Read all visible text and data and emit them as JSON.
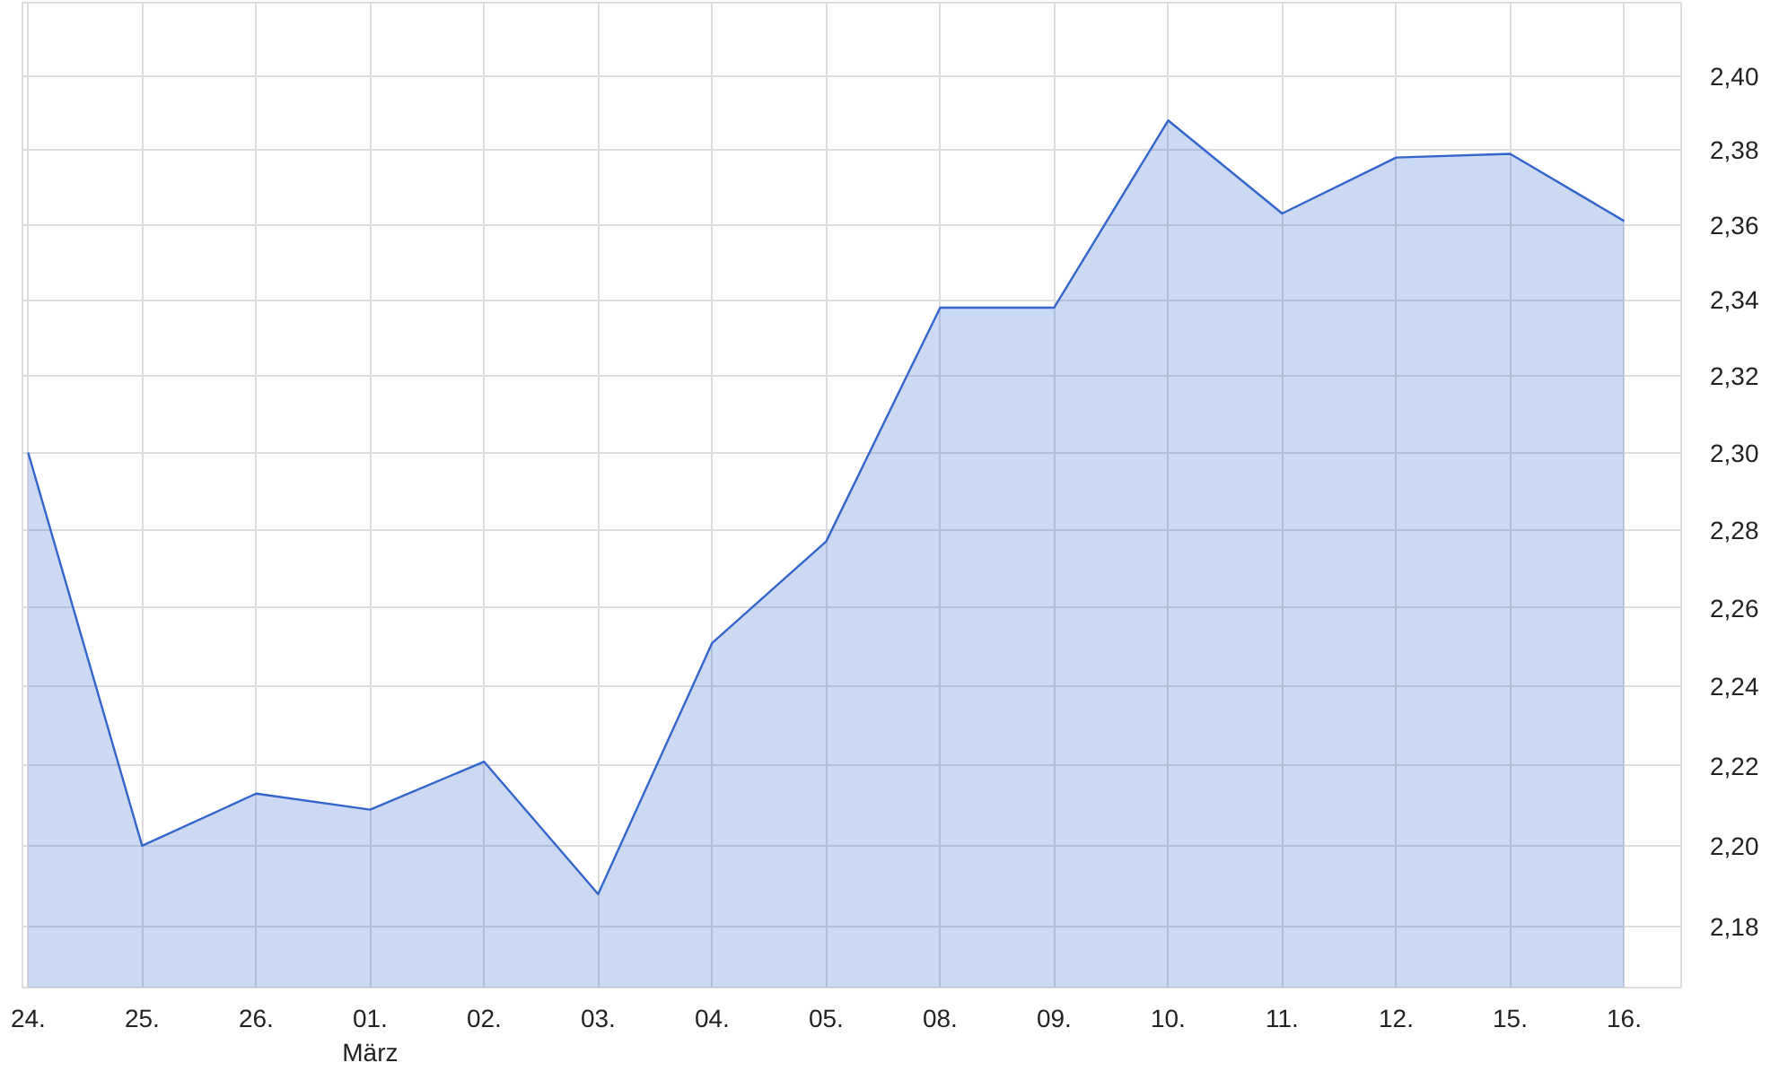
{
  "chart_data": {
    "type": "area",
    "categories": [
      "24.",
      "25.",
      "26.",
      "01.\nMärz",
      "02.",
      "03.",
      "04.",
      "05.",
      "08.",
      "09.",
      "10.",
      "11.",
      "12.",
      "15.",
      "16."
    ],
    "series": [
      {
        "color": "#3366cc",
        "values": [
          2.3,
          2.2,
          2.213,
          2.209,
          2.221,
          2.188,
          2.251,
          2.277,
          2.338,
          2.338,
          2.388,
          2.363,
          2.378,
          2.379,
          2.361
        ]
      }
    ],
    "ylim": [
      2.165,
      2.42
    ],
    "yticks": [
      {
        "value": 2.18,
        "label": "2,18"
      },
      {
        "value": 2.2,
        "label": "2,20"
      },
      {
        "value": 2.22,
        "label": "2,22"
      },
      {
        "value": 2.24,
        "label": "2,24"
      },
      {
        "value": 2.26,
        "label": "2,26"
      },
      {
        "value": 2.28,
        "label": "2,28"
      },
      {
        "value": 2.3,
        "label": "2,30"
      },
      {
        "value": 2.32,
        "label": "2,32"
      },
      {
        "value": 2.34,
        "label": "2,34"
      },
      {
        "value": 2.36,
        "label": "2,36"
      },
      {
        "value": 2.38,
        "label": "2,38"
      },
      {
        "value": 2.4,
        "label": "2,40"
      }
    ],
    "log": true,
    "grid": true
  }
}
